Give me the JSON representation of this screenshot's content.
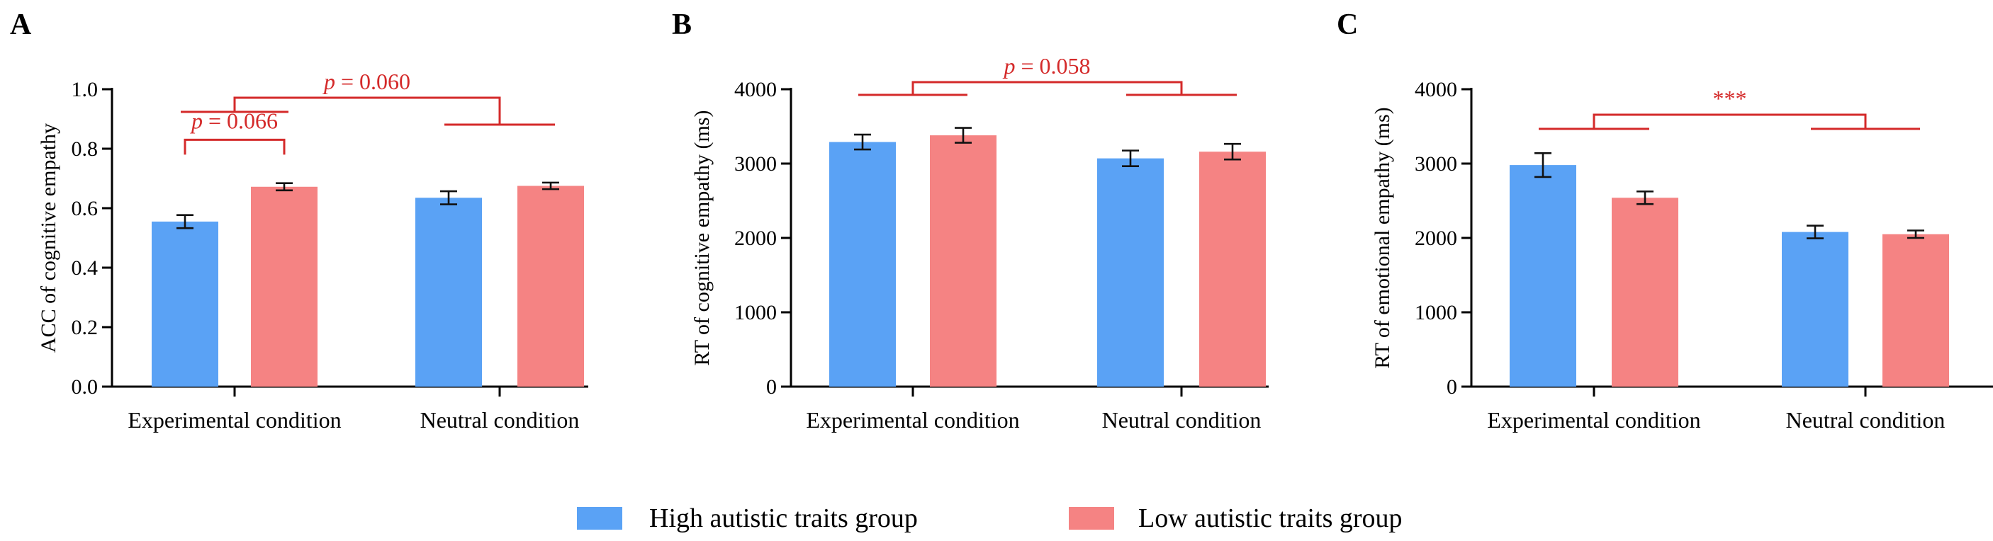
{
  "colors": {
    "high": "#5aa2f5",
    "low": "#f58383",
    "sig": "#d42a2a"
  },
  "legend": {
    "high_label": "High autistic traits group",
    "low_label": "Low autistic traits group"
  },
  "chart_data": [
    {
      "type": "bar",
      "panel": "A",
      "ylabel": "ACC of cognitive empathy",
      "ylim": [
        0,
        1.0
      ],
      "yticks": [
        "0.0",
        "0.2",
        "0.4",
        "0.6",
        "0.8",
        "1.0"
      ],
      "categories": [
        "Experimental condition",
        "Neutral condition"
      ],
      "series": [
        {
          "name": "High autistic traits group",
          "values": [
            0.555,
            0.635
          ],
          "errors": [
            0.022,
            0.022
          ]
        },
        {
          "name": "Low autistic traits group",
          "values": [
            0.672,
            0.675
          ],
          "errors": [
            0.012,
            0.011
          ]
        }
      ],
      "annotations": [
        {
          "type": "within",
          "category": 0,
          "text": "p = 0.066",
          "p": "p",
          "rest": " = 0.066"
        },
        {
          "type": "between",
          "text": "p = 0.060",
          "p": "p",
          "rest": " = 0.060"
        }
      ]
    },
    {
      "type": "bar",
      "panel": "B",
      "ylabel": "RT of cognitive empathy (ms)",
      "ylim": [
        0,
        4000
      ],
      "yticks": [
        "0",
        "1000",
        "2000",
        "3000",
        "4000"
      ],
      "categories": [
        "Experimental condition",
        "Neutral condition"
      ],
      "series": [
        {
          "name": "High autistic traits group",
          "values": [
            3290,
            3070
          ],
          "errors": [
            100,
            105
          ]
        },
        {
          "name": "Low autistic traits group",
          "values": [
            3380,
            3160
          ],
          "errors": [
            100,
            105
          ]
        }
      ],
      "annotations": [
        {
          "type": "between",
          "text": "p = 0.058",
          "p": "p",
          "rest": " = 0.058"
        }
      ]
    },
    {
      "type": "bar",
      "panel": "C",
      "ylabel": "RT of emotional empathy (ms)",
      "ylim": [
        0,
        4000
      ],
      "yticks": [
        "0",
        "1000",
        "2000",
        "3000",
        "4000"
      ],
      "categories": [
        "Experimental condition",
        "Neutral condition"
      ],
      "series": [
        {
          "name": "High autistic traits group",
          "values": [
            2980,
            2080
          ],
          "errors": [
            160,
            85
          ]
        },
        {
          "name": "Low autistic traits group",
          "values": [
            2540,
            2050
          ],
          "errors": [
            85,
            50
          ]
        }
      ],
      "annotations": [
        {
          "type": "between",
          "text": "***",
          "p": "",
          "rest": "***"
        }
      ]
    }
  ]
}
